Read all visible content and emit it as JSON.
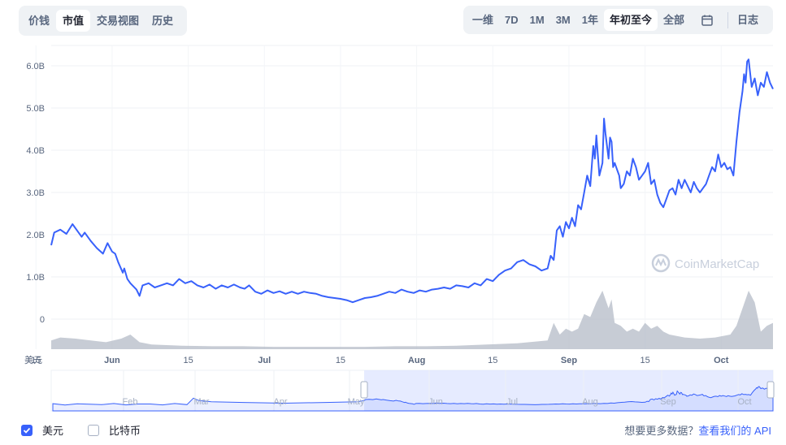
{
  "tabs_left": [
    {
      "label": "价钱",
      "active": false
    },
    {
      "label": "市值",
      "active": true
    },
    {
      "label": "交易视图",
      "active": false
    },
    {
      "label": "历史",
      "active": false
    }
  ],
  "tabs_right": [
    {
      "label": "一维",
      "active": false
    },
    {
      "label": "7D",
      "active": false
    },
    {
      "label": "1M",
      "active": false
    },
    {
      "label": "3M",
      "active": false
    },
    {
      "label": "1年",
      "active": false
    },
    {
      "label": "年初至今",
      "active": true
    },
    {
      "label": "全部",
      "active": false
    }
  ],
  "calendar_icon": "calendar-icon",
  "log_label": "日志",
  "watermark": "CoinMarketCap",
  "legend": {
    "usd": {
      "label": "美元",
      "checked": true
    },
    "btc": {
      "label": "比特币",
      "checked": false
    }
  },
  "api_note": {
    "text": "想要更多数据？",
    "link": "查看我们的 API"
  },
  "colors": {
    "line": "#3861fb",
    "volume": "#b4bbc7",
    "navigator": "#dbe3ff"
  },
  "chart_data": {
    "type": "line",
    "currency_label": "美元",
    "y_ticks": [
      "6.0B",
      "5.0B",
      "4.0B",
      "3.0B",
      "2.0B",
      "1.0B",
      "0"
    ],
    "ylim": [
      0,
      6.5
    ],
    "x_ticks": [
      {
        "label": "15",
        "x": 10.2,
        "bold": false
      },
      {
        "label": "Jun",
        "x": 12.7,
        "bold": true
      },
      {
        "label": "15",
        "x": 15.2,
        "bold": false
      },
      {
        "label": "Jul",
        "x": 17.7,
        "bold": true
      },
      {
        "label": "15",
        "x": 20.2,
        "bold": false
      },
      {
        "label": "Aug",
        "x": 22.7,
        "bold": true
      },
      {
        "label": "15",
        "x": 25.2,
        "bold": false
      },
      {
        "label": "Sep",
        "x": 27.7,
        "bold": true
      },
      {
        "label": "15",
        "x": 30.2,
        "bold": false
      },
      {
        "label": "Oct",
        "x": 32.7,
        "bold": true
      }
    ],
    "xlim": [
      10.7,
      34.4
    ],
    "market_cap_billion": [
      [
        10.7,
        1.75
      ],
      [
        10.8,
        2.05
      ],
      [
        11.0,
        2.12
      ],
      [
        11.2,
        2.02
      ],
      [
        11.4,
        2.25
      ],
      [
        11.6,
        2.05
      ],
      [
        11.7,
        1.95
      ],
      [
        11.8,
        2.05
      ],
      [
        12.0,
        1.85
      ],
      [
        12.2,
        1.68
      ],
      [
        12.4,
        1.55
      ],
      [
        12.55,
        1.8
      ],
      [
        12.7,
        1.6
      ],
      [
        12.8,
        1.55
      ],
      [
        12.9,
        1.35
      ],
      [
        13.05,
        1.1
      ],
      [
        13.1,
        1.2
      ],
      [
        13.2,
        0.95
      ],
      [
        13.3,
        0.85
      ],
      [
        13.5,
        0.7
      ],
      [
        13.6,
        0.55
      ],
      [
        13.7,
        0.8
      ],
      [
        13.9,
        0.85
      ],
      [
        14.1,
        0.75
      ],
      [
        14.3,
        0.8
      ],
      [
        14.5,
        0.85
      ],
      [
        14.7,
        0.8
      ],
      [
        14.9,
        0.95
      ],
      [
        15.1,
        0.85
      ],
      [
        15.3,
        0.9
      ],
      [
        15.5,
        0.8
      ],
      [
        15.7,
        0.75
      ],
      [
        15.9,
        0.82
      ],
      [
        16.1,
        0.72
      ],
      [
        16.3,
        0.8
      ],
      [
        16.5,
        0.75
      ],
      [
        16.7,
        0.82
      ],
      [
        16.9,
        0.75
      ],
      [
        17.05,
        0.72
      ],
      [
        17.2,
        0.8
      ],
      [
        17.4,
        0.65
      ],
      [
        17.6,
        0.6
      ],
      [
        17.8,
        0.68
      ],
      [
        18.0,
        0.62
      ],
      [
        18.2,
        0.66
      ],
      [
        18.4,
        0.6
      ],
      [
        18.6,
        0.65
      ],
      [
        18.8,
        0.6
      ],
      [
        19.0,
        0.65
      ],
      [
        19.2,
        0.62
      ],
      [
        19.4,
        0.6
      ],
      [
        19.6,
        0.55
      ],
      [
        19.8,
        0.52
      ],
      [
        20.0,
        0.5
      ],
      [
        20.2,
        0.48
      ],
      [
        20.4,
        0.45
      ],
      [
        20.6,
        0.4
      ],
      [
        20.8,
        0.45
      ],
      [
        21.0,
        0.5
      ],
      [
        21.2,
        0.52
      ],
      [
        21.4,
        0.55
      ],
      [
        21.6,
        0.6
      ],
      [
        21.8,
        0.65
      ],
      [
        22.0,
        0.62
      ],
      [
        22.2,
        0.7
      ],
      [
        22.4,
        0.65
      ],
      [
        22.6,
        0.62
      ],
      [
        22.8,
        0.68
      ],
      [
        23.0,
        0.65
      ],
      [
        23.2,
        0.7
      ],
      [
        23.4,
        0.72
      ],
      [
        23.6,
        0.75
      ],
      [
        23.8,
        0.72
      ],
      [
        24.0,
        0.8
      ],
      [
        24.2,
        0.78
      ],
      [
        24.4,
        0.75
      ],
      [
        24.6,
        0.85
      ],
      [
        24.8,
        0.8
      ],
      [
        25.0,
        0.95
      ],
      [
        25.2,
        0.9
      ],
      [
        25.4,
        1.05
      ],
      [
        25.6,
        1.15
      ],
      [
        25.8,
        1.2
      ],
      [
        26.0,
        1.35
      ],
      [
        26.2,
        1.4
      ],
      [
        26.4,
        1.3
      ],
      [
        26.6,
        1.25
      ],
      [
        26.8,
        1.15
      ],
      [
        27.0,
        1.2
      ],
      [
        27.1,
        1.5
      ],
      [
        27.2,
        1.4
      ],
      [
        27.3,
        2.1
      ],
      [
        27.4,
        2.2
      ],
      [
        27.5,
        1.95
      ],
      [
        27.6,
        2.3
      ],
      [
        27.7,
        2.15
      ],
      [
        27.8,
        2.4
      ],
      [
        27.9,
        2.2
      ],
      [
        28.0,
        2.7
      ],
      [
        28.1,
        2.6
      ],
      [
        28.2,
        3.0
      ],
      [
        28.3,
        3.4
      ],
      [
        28.4,
        3.15
      ],
      [
        28.5,
        4.1
      ],
      [
        28.55,
        3.8
      ],
      [
        28.6,
        4.35
      ],
      [
        28.7,
        3.4
      ],
      [
        28.8,
        3.7
      ],
      [
        28.85,
        4.75
      ],
      [
        28.9,
        4.4
      ],
      [
        29.0,
        3.8
      ],
      [
        29.05,
        4.3
      ],
      [
        29.1,
        4.2
      ],
      [
        29.15,
        3.6
      ],
      [
        29.2,
        3.7
      ],
      [
        29.3,
        3.5
      ],
      [
        29.35,
        3.4
      ],
      [
        29.4,
        3.1
      ],
      [
        29.5,
        3.2
      ],
      [
        29.6,
        3.5
      ],
      [
        29.7,
        3.4
      ],
      [
        29.8,
        3.8
      ],
      [
        29.9,
        3.6
      ],
      [
        30.0,
        3.3
      ],
      [
        30.1,
        3.4
      ],
      [
        30.2,
        3.5
      ],
      [
        30.3,
        3.7
      ],
      [
        30.4,
        3.2
      ],
      [
        30.5,
        3.3
      ],
      [
        30.6,
        2.95
      ],
      [
        30.7,
        2.75
      ],
      [
        30.8,
        2.65
      ],
      [
        30.9,
        2.85
      ],
      [
        31.0,
        3.05
      ],
      [
        31.1,
        3.1
      ],
      [
        31.2,
        2.95
      ],
      [
        31.3,
        3.3
      ],
      [
        31.4,
        3.1
      ],
      [
        31.5,
        3.3
      ],
      [
        31.6,
        3.15
      ],
      [
        31.7,
        3.0
      ],
      [
        31.8,
        3.25
      ],
      [
        31.9,
        3.1
      ],
      [
        32.0,
        3.0
      ],
      [
        32.1,
        3.1
      ],
      [
        32.2,
        3.2
      ],
      [
        32.3,
        3.4
      ],
      [
        32.4,
        3.6
      ],
      [
        32.5,
        3.5
      ],
      [
        32.6,
        3.9
      ],
      [
        32.7,
        3.6
      ],
      [
        32.8,
        3.7
      ],
      [
        32.9,
        3.55
      ],
      [
        33.0,
        3.6
      ],
      [
        33.1,
        3.4
      ],
      [
        33.2,
        4.2
      ],
      [
        33.3,
        4.9
      ],
      [
        33.4,
        5.4
      ],
      [
        33.45,
        5.8
      ],
      [
        33.5,
        5.6
      ],
      [
        33.55,
        6.1
      ],
      [
        33.6,
        6.15
      ],
      [
        33.7,
        5.5
      ],
      [
        33.8,
        5.7
      ],
      [
        33.9,
        5.3
      ],
      [
        34.0,
        5.6
      ],
      [
        34.1,
        5.5
      ],
      [
        34.2,
        5.85
      ],
      [
        34.3,
        5.6
      ],
      [
        34.4,
        5.45
      ]
    ],
    "volume_relative": [
      [
        10.7,
        0.15
      ],
      [
        11.0,
        0.2
      ],
      [
        11.5,
        0.18
      ],
      [
        12.0,
        0.15
      ],
      [
        12.5,
        0.12
      ],
      [
        13.0,
        0.18
      ],
      [
        13.3,
        0.25
      ],
      [
        13.6,
        0.12
      ],
      [
        14.0,
        0.08
      ],
      [
        15.0,
        0.06
      ],
      [
        16.0,
        0.05
      ],
      [
        17.0,
        0.05
      ],
      [
        18.0,
        0.04
      ],
      [
        19.0,
        0.04
      ],
      [
        20.0,
        0.04
      ],
      [
        21.0,
        0.04
      ],
      [
        22.0,
        0.05
      ],
      [
        23.0,
        0.05
      ],
      [
        24.0,
        0.06
      ],
      [
        25.0,
        0.08
      ],
      [
        26.0,
        0.1
      ],
      [
        27.0,
        0.15
      ],
      [
        27.2,
        0.45
      ],
      [
        27.4,
        0.25
      ],
      [
        27.6,
        0.35
      ],
      [
        27.8,
        0.3
      ],
      [
        28.0,
        0.35
      ],
      [
        28.2,
        0.6
      ],
      [
        28.4,
        0.55
      ],
      [
        28.6,
        0.8
      ],
      [
        28.8,
        1.0
      ],
      [
        29.0,
        0.7
      ],
      [
        29.1,
        0.85
      ],
      [
        29.2,
        0.45
      ],
      [
        29.4,
        0.4
      ],
      [
        29.6,
        0.3
      ],
      [
        29.8,
        0.35
      ],
      [
        30.0,
        0.3
      ],
      [
        30.2,
        0.45
      ],
      [
        30.4,
        0.35
      ],
      [
        30.6,
        0.4
      ],
      [
        30.8,
        0.3
      ],
      [
        31.0,
        0.25
      ],
      [
        31.5,
        0.2
      ],
      [
        32.0,
        0.18
      ],
      [
        32.5,
        0.2
      ],
      [
        33.0,
        0.25
      ],
      [
        33.2,
        0.4
      ],
      [
        33.4,
        0.7
      ],
      [
        33.6,
        1.0
      ],
      [
        33.8,
        0.8
      ],
      [
        34.0,
        0.3
      ],
      [
        34.2,
        0.4
      ],
      [
        34.4,
        0.45
      ]
    ],
    "navigator": {
      "ticks": [
        "Feb",
        "Mar",
        "Apr",
        "May",
        "Jun",
        "Jul",
        "Aug",
        "Sep",
        "Oct"
      ],
      "selection_start_label": "May"
    }
  }
}
